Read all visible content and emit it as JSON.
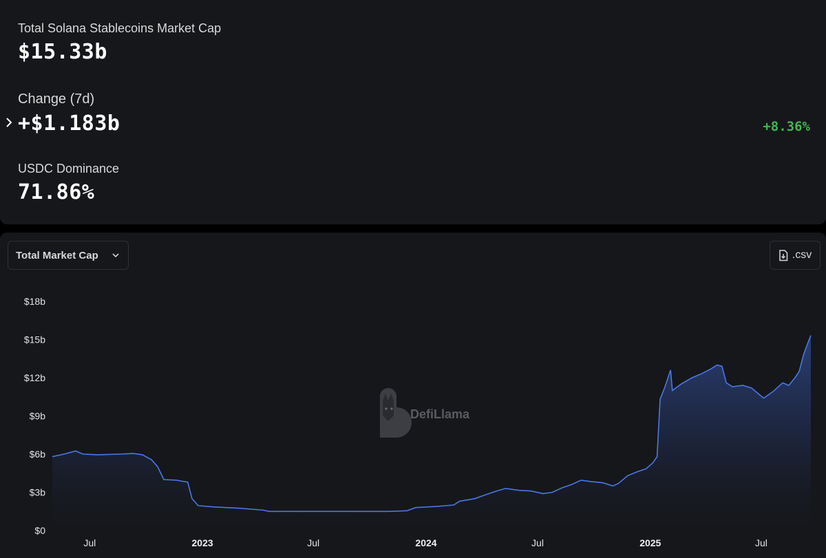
{
  "stats": {
    "market_cap_label": "Total Solana Stablecoins Market Cap",
    "market_cap_value": "$15.33b",
    "change_label": "Change (7d)",
    "change_value": "+$1.183b",
    "change_percent": "+8.36%",
    "dominance_label": "USDC Dominance",
    "dominance_value": "71.86%"
  },
  "controls": {
    "dropdown_label": "Total Market Cap",
    "csv_label": ".csv"
  },
  "watermark": {
    "text": "DefiLlama"
  },
  "colors": {
    "background": "#000000",
    "card": "#16171b",
    "line": "#4a78e6",
    "positive": "#3fb84f"
  },
  "chart_data": {
    "type": "area",
    "title": "",
    "xlabel": "",
    "ylabel": "",
    "ylim": [
      0,
      18
    ],
    "y_unit": "billion USD",
    "x_range": [
      "2022-05-01",
      "2025-09-20"
    ],
    "y_ticks": [
      {
        "value": 0,
        "label": "$0"
      },
      {
        "value": 3,
        "label": "$3b"
      },
      {
        "value": 6,
        "label": "$6b"
      },
      {
        "value": 9,
        "label": "$9b"
      },
      {
        "value": 12,
        "label": "$12b"
      },
      {
        "value": 15,
        "label": "$15b"
      },
      {
        "value": 18,
        "label": "$18b"
      }
    ],
    "x_ticks": [
      {
        "date": "2022-07-01",
        "label": "Jul",
        "bold": false
      },
      {
        "date": "2023-01-01",
        "label": "2023",
        "bold": true
      },
      {
        "date": "2023-07-01",
        "label": "Jul",
        "bold": false
      },
      {
        "date": "2024-01-01",
        "label": "2024",
        "bold": true
      },
      {
        "date": "2024-07-01",
        "label": "Jul",
        "bold": false
      },
      {
        "date": "2025-01-01",
        "label": "2025",
        "bold": true
      },
      {
        "date": "2025-07-01",
        "label": "Jul",
        "bold": false
      }
    ],
    "grid": false,
    "legend": "none",
    "series": [
      {
        "values": [
          [
            "2022-05-01",
            5.8
          ],
          [
            "2022-05-20",
            6.0
          ],
          [
            "2022-06-01",
            6.15
          ],
          [
            "2022-06-08",
            6.25
          ],
          [
            "2022-06-20",
            6.0
          ],
          [
            "2022-07-15",
            5.95
          ],
          [
            "2022-08-20",
            6.0
          ],
          [
            "2022-09-10",
            6.05
          ],
          [
            "2022-09-25",
            5.95
          ],
          [
            "2022-10-10",
            5.55
          ],
          [
            "2022-10-20",
            5.0
          ],
          [
            "2022-10-30",
            4.0
          ],
          [
            "2022-11-20",
            3.95
          ],
          [
            "2022-11-25",
            3.9
          ],
          [
            "2022-12-08",
            3.8
          ],
          [
            "2022-12-15",
            2.5
          ],
          [
            "2022-12-25",
            1.95
          ],
          [
            "2023-01-20",
            1.85
          ],
          [
            "2023-03-01",
            1.75
          ],
          [
            "2023-04-10",
            1.6
          ],
          [
            "2023-04-20",
            1.5
          ],
          [
            "2023-06-01",
            1.5
          ],
          [
            "2023-08-01",
            1.5
          ],
          [
            "2023-10-01",
            1.5
          ],
          [
            "2023-11-01",
            1.5
          ],
          [
            "2023-12-01",
            1.55
          ],
          [
            "2023-12-15",
            1.8
          ],
          [
            "2024-01-20",
            1.9
          ],
          [
            "2024-02-15",
            2.0
          ],
          [
            "2024-02-25",
            2.3
          ],
          [
            "2024-03-20",
            2.5
          ],
          [
            "2024-04-10",
            2.85
          ],
          [
            "2024-04-25",
            3.1
          ],
          [
            "2024-05-10",
            3.3
          ],
          [
            "2024-06-01",
            3.15
          ],
          [
            "2024-06-20",
            3.1
          ],
          [
            "2024-07-10",
            2.9
          ],
          [
            "2024-07-25",
            3.0
          ],
          [
            "2024-08-10",
            3.35
          ],
          [
            "2024-08-25",
            3.6
          ],
          [
            "2024-09-10",
            3.95
          ],
          [
            "2024-09-25",
            3.85
          ],
          [
            "2024-10-15",
            3.75
          ],
          [
            "2024-11-01",
            3.5
          ],
          [
            "2024-11-10",
            3.7
          ],
          [
            "2024-11-25",
            4.3
          ],
          [
            "2024-12-10",
            4.6
          ],
          [
            "2024-12-25",
            4.85
          ],
          [
            "2025-01-05",
            5.3
          ],
          [
            "2025-01-12",
            5.8
          ],
          [
            "2025-01-17",
            10.3
          ],
          [
            "2025-01-25",
            11.3
          ],
          [
            "2025-02-03",
            12.6
          ],
          [
            "2025-02-06",
            11.0
          ],
          [
            "2025-02-20",
            11.5
          ],
          [
            "2025-03-10",
            12.0
          ],
          [
            "2025-03-25",
            12.3
          ],
          [
            "2025-04-10",
            12.7
          ],
          [
            "2025-04-20",
            13.0
          ],
          [
            "2025-04-28",
            12.9
          ],
          [
            "2025-05-05",
            11.6
          ],
          [
            "2025-05-15",
            11.3
          ],
          [
            "2025-06-01",
            11.4
          ],
          [
            "2025-06-15",
            11.2
          ],
          [
            "2025-06-25",
            10.8
          ],
          [
            "2025-07-05",
            10.4
          ],
          [
            "2025-07-20",
            10.9
          ],
          [
            "2025-08-05",
            11.6
          ],
          [
            "2025-08-15",
            11.4
          ],
          [
            "2025-08-25",
            12.0
          ],
          [
            "2025-09-01",
            12.5
          ],
          [
            "2025-09-08",
            13.8
          ],
          [
            "2025-09-14",
            14.6
          ],
          [
            "2025-09-20",
            15.33
          ]
        ]
      }
    ]
  }
}
